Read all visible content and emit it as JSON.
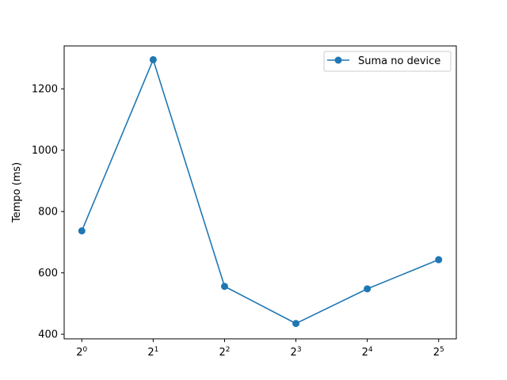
{
  "chart_data": {
    "type": "line",
    "xlabel": "",
    "ylabel": "Tempo (ms)",
    "x_scale": "log2",
    "categories": [
      {
        "base": "2",
        "exp": "0"
      },
      {
        "base": "2",
        "exp": "1"
      },
      {
        "base": "2",
        "exp": "2"
      },
      {
        "base": "2",
        "exp": "3"
      },
      {
        "base": "2",
        "exp": "4"
      },
      {
        "base": "2",
        "exp": "5"
      }
    ],
    "x": [
      1,
      2,
      4,
      8,
      16,
      32
    ],
    "yticks": [
      400,
      600,
      800,
      1000,
      1200
    ],
    "ylim": [
      385,
      1340
    ],
    "grid": false,
    "legend_position": "top-right",
    "series": [
      {
        "name": "Suma no device",
        "color": "#1f77b4",
        "marker": "circle",
        "values": [
          737,
          1295,
          556,
          435,
          548,
          643
        ]
      }
    ]
  }
}
